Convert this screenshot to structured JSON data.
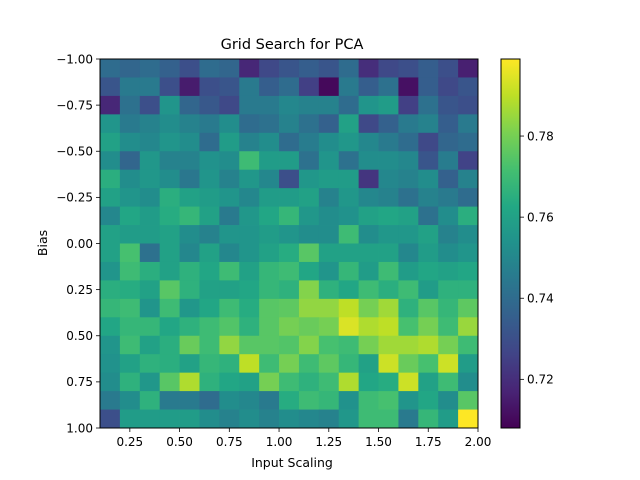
{
  "chart_data": {
    "type": "heatmap",
    "title": "Grid Search for PCA",
    "xlabel": "Input Scaling",
    "ylabel": "Bias",
    "x_range": [
      0.1,
      2.0
    ],
    "y_range": [
      -1.0,
      1.0
    ],
    "y_inverted": true,
    "x_ticks": [
      "0.25",
      "0.50",
      "0.75",
      "1.00",
      "1.25",
      "1.50",
      "1.75",
      "2.00"
    ],
    "x_tick_values": [
      0.25,
      0.5,
      0.75,
      1.0,
      1.25,
      1.5,
      1.75,
      2.0
    ],
    "y_ticks": [
      "−1.00",
      "−0.75",
      "−0.50",
      "−0.25",
      "0.00",
      "0.25",
      "0.50",
      "0.75",
      "1.00"
    ],
    "y_tick_values": [
      -1.0,
      -0.75,
      -0.5,
      -0.25,
      0.0,
      0.25,
      0.5,
      0.75,
      1.0
    ],
    "colormap": "viridis",
    "colorbar": {
      "range": [
        0.708,
        0.799
      ],
      "ticks": [
        "0.72",
        "0.74",
        "0.76",
        "0.78"
      ],
      "tick_values": [
        0.72,
        0.74,
        0.76,
        0.78
      ]
    },
    "x_centers": [
      0.15,
      0.25,
      0.35,
      0.45,
      0.55,
      0.65,
      0.75,
      0.85,
      0.95,
      1.05,
      1.15,
      1.25,
      1.35,
      1.45,
      1.55,
      1.65,
      1.75,
      1.85,
      1.95
    ],
    "y_centers": [
      -0.95,
      -0.85,
      -0.75,
      -0.65,
      -0.55,
      -0.45,
      -0.35,
      -0.25,
      -0.15,
      -0.05,
      0.05,
      0.15,
      0.25,
      0.35,
      0.45,
      0.55,
      0.65,
      0.75,
      0.85,
      0.95
    ],
    "values": [
      [
        0.74,
        0.738,
        0.74,
        0.736,
        0.73,
        0.74,
        0.738,
        0.718,
        0.728,
        0.732,
        0.735,
        0.732,
        0.74,
        0.72,
        0.728,
        0.73,
        0.735,
        0.73,
        0.716
      ],
      [
        0.732,
        0.745,
        0.745,
        0.73,
        0.715,
        0.73,
        0.732,
        0.745,
        0.735,
        0.74,
        0.725,
        0.71,
        0.745,
        0.735,
        0.742,
        0.712,
        0.735,
        0.728,
        0.732
      ],
      [
        0.718,
        0.742,
        0.73,
        0.755,
        0.738,
        0.733,
        0.728,
        0.745,
        0.745,
        0.75,
        0.748,
        0.748,
        0.74,
        0.755,
        0.758,
        0.725,
        0.742,
        0.732,
        0.73
      ],
      [
        0.755,
        0.745,
        0.748,
        0.752,
        0.748,
        0.745,
        0.752,
        0.74,
        0.742,
        0.748,
        0.742,
        0.736,
        0.76,
        0.728,
        0.736,
        0.745,
        0.748,
        0.735,
        0.745
      ],
      [
        0.76,
        0.752,
        0.75,
        0.755,
        0.752,
        0.74,
        0.758,
        0.748,
        0.752,
        0.74,
        0.746,
        0.752,
        0.756,
        0.75,
        0.745,
        0.74,
        0.728,
        0.738,
        0.74
      ],
      [
        0.752,
        0.738,
        0.756,
        0.748,
        0.748,
        0.754,
        0.752,
        0.77,
        0.758,
        0.758,
        0.742,
        0.755,
        0.742,
        0.752,
        0.752,
        0.75,
        0.732,
        0.746,
        0.726
      ],
      [
        0.765,
        0.752,
        0.756,
        0.752,
        0.744,
        0.755,
        0.748,
        0.756,
        0.75,
        0.73,
        0.756,
        0.758,
        0.758,
        0.722,
        0.75,
        0.748,
        0.752,
        0.736,
        0.748
      ],
      [
        0.76,
        0.755,
        0.752,
        0.765,
        0.76,
        0.758,
        0.755,
        0.75,
        0.758,
        0.758,
        0.76,
        0.748,
        0.756,
        0.75,
        0.748,
        0.742,
        0.748,
        0.745,
        0.74
      ],
      [
        0.75,
        0.762,
        0.758,
        0.764,
        0.768,
        0.76,
        0.745,
        0.756,
        0.762,
        0.768,
        0.756,
        0.752,
        0.754,
        0.76,
        0.762,
        0.76,
        0.742,
        0.752,
        0.765
      ],
      [
        0.76,
        0.758,
        0.758,
        0.76,
        0.752,
        0.748,
        0.755,
        0.755,
        0.758,
        0.755,
        0.752,
        0.752,
        0.77,
        0.752,
        0.756,
        0.756,
        0.76,
        0.748,
        0.752
      ],
      [
        0.76,
        0.772,
        0.742,
        0.76,
        0.75,
        0.76,
        0.75,
        0.755,
        0.76,
        0.764,
        0.775,
        0.76,
        0.76,
        0.76,
        0.76,
        0.75,
        0.758,
        0.752,
        0.755
      ],
      [
        0.755,
        0.77,
        0.765,
        0.76,
        0.766,
        0.762,
        0.77,
        0.76,
        0.768,
        0.77,
        0.762,
        0.755,
        0.768,
        0.758,
        0.77,
        0.758,
        0.762,
        0.76,
        0.762
      ],
      [
        0.765,
        0.764,
        0.76,
        0.775,
        0.766,
        0.76,
        0.76,
        0.762,
        0.768,
        0.766,
        0.782,
        0.766,
        0.762,
        0.77,
        0.765,
        0.77,
        0.758,
        0.766,
        0.766
      ],
      [
        0.768,
        0.77,
        0.755,
        0.77,
        0.756,
        0.762,
        0.77,
        0.764,
        0.775,
        0.776,
        0.784,
        0.784,
        0.79,
        0.78,
        0.786,
        0.766,
        0.775,
        0.768,
        0.776
      ],
      [
        0.762,
        0.768,
        0.768,
        0.762,
        0.766,
        0.77,
        0.774,
        0.766,
        0.775,
        0.78,
        0.778,
        0.78,
        0.794,
        0.788,
        0.79,
        0.772,
        0.78,
        0.77,
        0.785
      ],
      [
        0.755,
        0.77,
        0.76,
        0.765,
        0.778,
        0.77,
        0.784,
        0.775,
        0.775,
        0.774,
        0.782,
        0.772,
        0.77,
        0.78,
        0.786,
        0.786,
        0.788,
        0.78,
        0.77
      ],
      [
        0.754,
        0.76,
        0.766,
        0.765,
        0.76,
        0.768,
        0.766,
        0.79,
        0.77,
        0.78,
        0.77,
        0.776,
        0.768,
        0.76,
        0.792,
        0.778,
        0.772,
        0.792,
        0.758
      ],
      [
        0.752,
        0.766,
        0.756,
        0.775,
        0.788,
        0.766,
        0.762,
        0.76,
        0.78,
        0.77,
        0.766,
        0.77,
        0.788,
        0.762,
        0.764,
        0.792,
        0.76,
        0.77,
        0.752
      ],
      [
        0.745,
        0.752,
        0.766,
        0.745,
        0.745,
        0.74,
        0.752,
        0.75,
        0.745,
        0.764,
        0.77,
        0.768,
        0.754,
        0.77,
        0.772,
        0.755,
        0.762,
        0.752,
        0.775
      ],
      [
        0.73,
        0.758,
        0.758,
        0.758,
        0.758,
        0.752,
        0.748,
        0.752,
        0.748,
        0.752,
        0.75,
        0.748,
        0.756,
        0.77,
        0.77,
        0.745,
        0.768,
        0.758,
        0.799
      ]
    ]
  }
}
